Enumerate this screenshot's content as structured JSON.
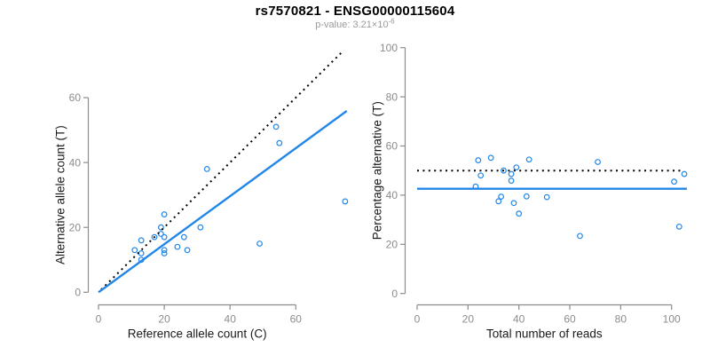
{
  "header": {
    "title": "rs7570821 - ENSG00000115604",
    "p_value_label": "p-value: ",
    "p_value_mantissa": "3.21",
    "p_value_base": "×10",
    "p_value_exponent": "-6"
  },
  "colors": {
    "point_blue": "#2287e8",
    "line_blue": "#2287e8",
    "dotted_black": "#000000",
    "axis_gray": "#8c8c8c",
    "tick_label_gray": "#8c8c8c",
    "axis_title_black": "#1a1a1a"
  },
  "chart_data": [
    {
      "type": "scatter",
      "name": "allele-counts-scatter",
      "xlabel": "Reference allele count (C)",
      "ylabel": "Alternative allele count (T)",
      "xlim": [
        0,
        76.5
      ],
      "ylim": [
        0,
        75
      ],
      "xticks": [
        0,
        20,
        40,
        60
      ],
      "yticks": [
        0,
        20,
        40,
        60
      ],
      "grid": false,
      "legend": "none",
      "points": [
        [
          11,
          13
        ],
        [
          13,
          16
        ],
        [
          13,
          12
        ],
        [
          13,
          10
        ],
        [
          17,
          17
        ],
        [
          19,
          18
        ],
        [
          19,
          20
        ],
        [
          20,
          24
        ],
        [
          20,
          17
        ],
        [
          20,
          13
        ],
        [
          20,
          12
        ],
        [
          24,
          14
        ],
        [
          26,
          17
        ],
        [
          27,
          13
        ],
        [
          31,
          20
        ],
        [
          33,
          38
        ],
        [
          49,
          15
        ],
        [
          54,
          51
        ],
        [
          55,
          46
        ],
        [
          75,
          28
        ]
      ],
      "lines": [
        {
          "name": "identity-line",
          "style": "dotted",
          "color_key": "dotted_black",
          "x1": 0.8,
          "y1": 0.8,
          "x2": 74.6,
          "y2": 74.6,
          "width": 2
        },
        {
          "name": "regression-line",
          "style": "solid",
          "color_key": "line_blue",
          "x1": 0,
          "y1": 0,
          "x2": 75.5,
          "y2": 55.9,
          "width": 2.4
        }
      ]
    },
    {
      "type": "scatter",
      "name": "percentage-vs-reads-scatter",
      "xlabel": "Total number of reads",
      "ylabel": "Percentage alternative (T)",
      "xlim": [
        0,
        107
      ],
      "ylim": [
        0,
        100
      ],
      "xticks": [
        0,
        20,
        40,
        60,
        80,
        100
      ],
      "yticks": [
        0,
        20,
        40,
        60,
        80,
        100
      ],
      "grid": false,
      "legend": "none",
      "points": [
        [
          24,
          54.2
        ],
        [
          29,
          55.2
        ],
        [
          25,
          48.0
        ],
        [
          23,
          43.5
        ],
        [
          34,
          50.0
        ],
        [
          37,
          48.6
        ],
        [
          39,
          51.3
        ],
        [
          44,
          54.5
        ],
        [
          37,
          45.9
        ],
        [
          33,
          39.4
        ],
        [
          32,
          37.5
        ],
        [
          38,
          36.8
        ],
        [
          43,
          39.5
        ],
        [
          40,
          32.5
        ],
        [
          51,
          39.2
        ],
        [
          71,
          53.5
        ],
        [
          64,
          23.4
        ],
        [
          105,
          48.6
        ],
        [
          101,
          45.5
        ],
        [
          103,
          27.2
        ]
      ],
      "lines": [
        {
          "name": "fifty-percent-line",
          "style": "dotted",
          "color_key": "dotted_black",
          "x1": 0,
          "y1": 50,
          "x2": 103.5,
          "y2": 50,
          "width": 2
        },
        {
          "name": "observed-percentage-line",
          "style": "solid",
          "color_key": "line_blue",
          "x1": 0,
          "y1": 42.6,
          "x2": 106,
          "y2": 42.6,
          "width": 2.4
        }
      ]
    }
  ]
}
